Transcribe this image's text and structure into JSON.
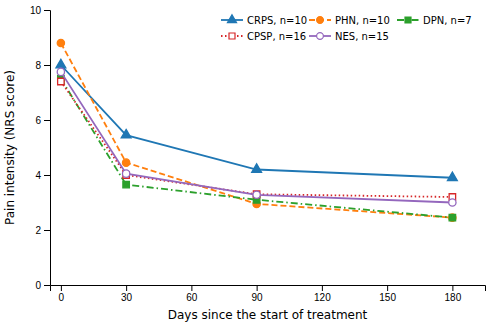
{
  "chart_data": {
    "type": "line",
    "xlabel": "Days since the start of treatment",
    "ylabel": "Pain intensity (NRS score)",
    "x": [
      0,
      30,
      90,
      180
    ],
    "xlim": [
      -5,
      195
    ],
    "xticks": [
      0,
      30,
      60,
      90,
      120,
      150,
      180
    ],
    "ylim": [
      0,
      10
    ],
    "yticks": [
      0,
      2,
      4,
      6,
      8,
      10
    ],
    "grid": false,
    "legend": "upper right",
    "series": [
      {
        "name": "CRPS, n=10",
        "values": [
          8.0,
          5.45,
          4.2,
          3.9
        ],
        "marker": "triangle",
        "line_style": "solid"
      },
      {
        "name": "PHN, n=10",
        "values": [
          8.8,
          4.45,
          2.95,
          2.45
        ],
        "marker": "circle",
        "line_style": "dashed"
      },
      {
        "name": "DPN, n=7",
        "values": [
          7.5,
          3.65,
          3.1,
          2.45
        ],
        "marker": "square",
        "line_style": "dashdot"
      },
      {
        "name": "CPSP, n=16",
        "values": [
          7.4,
          4.0,
          3.3,
          3.2
        ],
        "marker": "square-open",
        "line_style": "dotted"
      },
      {
        "name": "NES, n=15",
        "values": [
          7.75,
          4.05,
          3.28,
          3.0
        ],
        "marker": "circle-open",
        "line_style": "solid"
      }
    ]
  }
}
